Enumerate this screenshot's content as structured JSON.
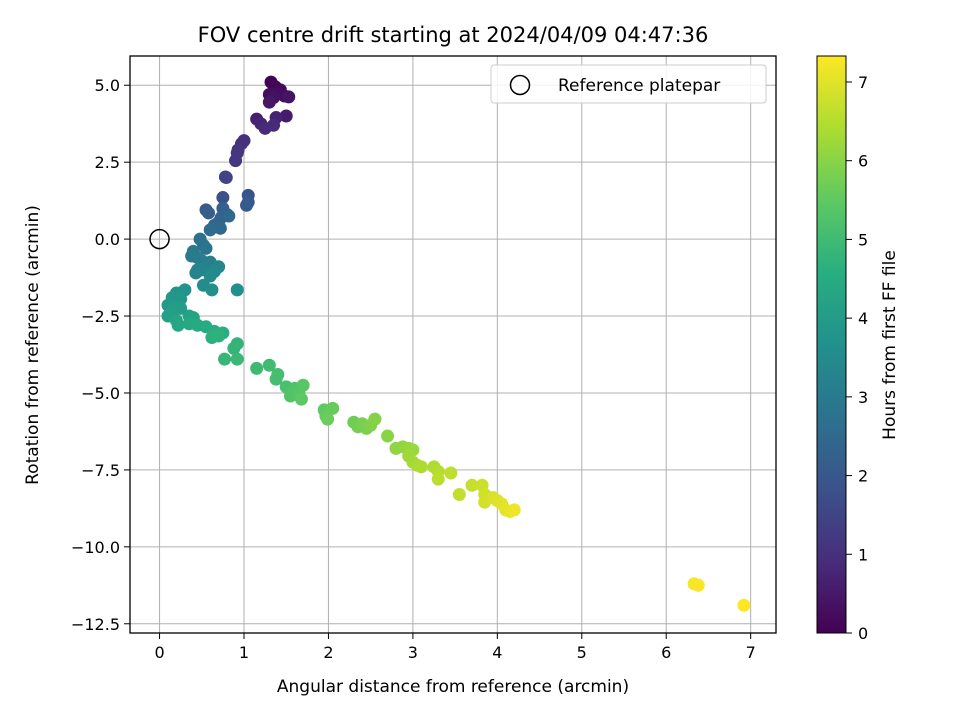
{
  "chart_data": {
    "type": "scatter",
    "title": "FOV centre drift starting at 2024/04/09 04:47:36",
    "xlabel": "Angular distance from reference (arcmin)",
    "ylabel": "Rotation from reference (arcmin)",
    "xlim": [
      -0.35,
      7.3
    ],
    "ylim": [
      -12.8,
      5.95
    ],
    "xticks": [
      0,
      1,
      2,
      3,
      4,
      5,
      6,
      7
    ],
    "xtick_labels": [
      "0",
      "1",
      "2",
      "3",
      "4",
      "5",
      "6",
      "7"
    ],
    "yticks": [
      5.0,
      2.5,
      0.0,
      -2.5,
      -5.0,
      -7.5,
      -10.0,
      -12.5
    ],
    "ytick_labels": [
      "5.0",
      "2.5",
      "0.0",
      "−2.5",
      "−5.0",
      "−7.5",
      "−10.0",
      "−12.5"
    ],
    "grid": true,
    "legend": {
      "placement": "top-right",
      "entries": [
        {
          "label": "Reference platepar",
          "marker": "open-circle"
        }
      ]
    },
    "reference_point": {
      "x": 0.0,
      "y": 0.0
    },
    "colorbar": {
      "label": "Hours from first FF file",
      "range": [
        0,
        7.33
      ],
      "ticks": [
        0,
        1,
        2,
        3,
        4,
        5,
        6,
        7
      ],
      "tick_labels": [
        "0",
        "1",
        "2",
        "3",
        "4",
        "5",
        "6",
        "7"
      ],
      "colormap": "viridis"
    },
    "points": [
      [
        1.32,
        5.1,
        0.05
      ],
      [
        1.37,
        4.95,
        0.1
      ],
      [
        1.43,
        4.85,
        0.15
      ],
      [
        1.4,
        4.75,
        0.2
      ],
      [
        1.3,
        4.7,
        0.25
      ],
      [
        1.48,
        4.65,
        0.3
      ],
      [
        1.35,
        4.6,
        0.35
      ],
      [
        1.53,
        4.62,
        0.4
      ],
      [
        1.3,
        4.45,
        0.45
      ],
      [
        1.5,
        4.0,
        0.55
      ],
      [
        1.15,
        3.9,
        0.65
      ],
      [
        1.38,
        3.95,
        0.7
      ],
      [
        1.2,
        3.75,
        0.75
      ],
      [
        1.25,
        3.6,
        0.85
      ],
      [
        1.35,
        3.7,
        0.9
      ],
      [
        1.0,
        3.2,
        1.0
      ],
      [
        0.97,
        3.1,
        1.05
      ],
      [
        0.93,
        2.9,
        1.1
      ],
      [
        0.92,
        2.8,
        1.15
      ],
      [
        0.9,
        2.55,
        1.2
      ],
      [
        0.78,
        2.02,
        1.4
      ],
      [
        0.79,
        2.0,
        1.45
      ],
      [
        0.75,
        1.35,
        1.8
      ],
      [
        1.05,
        1.42,
        1.9
      ],
      [
        1.05,
        1.2,
        2.0
      ],
      [
        1.03,
        1.1,
        2.05
      ],
      [
        0.55,
        0.95,
        2.1
      ],
      [
        0.58,
        0.85,
        2.15
      ],
      [
        0.75,
        1.0,
        2.2
      ],
      [
        0.8,
        0.8,
        2.25
      ],
      [
        0.73,
        0.7,
        2.3
      ],
      [
        0.7,
        0.55,
        2.35
      ],
      [
        0.65,
        0.45,
        2.4
      ],
      [
        0.72,
        0.35,
        2.45
      ],
      [
        0.82,
        0.75,
        2.5
      ],
      [
        0.6,
        0.3,
        2.55
      ],
      [
        0.48,
        0.0,
        2.7
      ],
      [
        0.52,
        -0.2,
        2.75
      ],
      [
        0.55,
        -0.3,
        2.8
      ],
      [
        0.4,
        -0.4,
        2.9
      ],
      [
        0.38,
        -0.55,
        2.95
      ],
      [
        0.45,
        -0.6,
        3.0
      ],
      [
        0.5,
        -0.7,
        3.05
      ],
      [
        0.6,
        -0.75,
        3.1
      ],
      [
        0.55,
        -0.9,
        3.15
      ],
      [
        0.45,
        -1.0,
        3.2
      ],
      [
        0.43,
        -1.1,
        3.25
      ],
      [
        0.5,
        -1.0,
        3.3
      ],
      [
        0.7,
        -0.9,
        3.35
      ],
      [
        0.65,
        -1.05,
        3.4
      ],
      [
        0.6,
        -1.2,
        3.45
      ],
      [
        0.52,
        -1.5,
        3.55
      ],
      [
        0.62,
        -1.65,
        3.6
      ],
      [
        0.92,
        -1.65,
        3.65
      ],
      [
        0.3,
        -1.65,
        3.75
      ],
      [
        0.2,
        -1.75,
        3.8
      ],
      [
        0.15,
        -1.9,
        3.85
      ],
      [
        0.25,
        -1.95,
        3.9
      ],
      [
        0.1,
        -2.15,
        3.95
      ],
      [
        0.18,
        -2.2,
        4.0
      ],
      [
        0.25,
        -2.25,
        4.05
      ],
      [
        0.15,
        -2.4,
        4.1
      ],
      [
        0.1,
        -2.5,
        4.15
      ],
      [
        0.35,
        -2.5,
        4.2
      ],
      [
        0.4,
        -2.55,
        4.25
      ],
      [
        0.2,
        -2.65,
        4.3
      ],
      [
        0.22,
        -2.8,
        4.35
      ],
      [
        0.35,
        -2.75,
        4.4
      ],
      [
        0.45,
        -2.8,
        4.45
      ],
      [
        0.55,
        -2.85,
        4.5
      ],
      [
        0.65,
        -3.0,
        4.55
      ],
      [
        0.75,
        -3.05,
        4.6
      ],
      [
        0.62,
        -3.2,
        4.65
      ],
      [
        0.7,
        -3.15,
        4.7
      ],
      [
        0.92,
        -3.4,
        4.75
      ],
      [
        0.88,
        -3.55,
        4.8
      ],
      [
        0.77,
        -3.9,
        4.85
      ],
      [
        0.92,
        -3.9,
        4.9
      ],
      [
        1.15,
        -4.2,
        4.95
      ],
      [
        1.3,
        -4.1,
        5.0
      ],
      [
        1.4,
        -4.4,
        5.05
      ],
      [
        1.38,
        -4.55,
        5.1
      ],
      [
        1.5,
        -4.8,
        5.15
      ],
      [
        1.55,
        -4.95,
        5.2
      ],
      [
        1.6,
        -4.85,
        5.25
      ],
      [
        1.55,
        -5.1,
        5.3
      ],
      [
        1.65,
        -5.0,
        5.35
      ],
      [
        1.7,
        -4.75,
        5.4
      ],
      [
        1.68,
        -5.2,
        5.45
      ],
      [
        1.95,
        -5.55,
        5.5
      ],
      [
        1.97,
        -5.75,
        5.55
      ],
      [
        2.05,
        -5.5,
        5.6
      ],
      [
        1.99,
        -5.85,
        5.65
      ],
      [
        2.3,
        -5.95,
        5.7
      ],
      [
        2.35,
        -6.1,
        5.75
      ],
      [
        2.4,
        -6.0,
        5.8
      ],
      [
        2.45,
        -6.15,
        5.85
      ],
      [
        2.5,
        -6.05,
        5.9
      ],
      [
        2.55,
        -5.85,
        5.95
      ],
      [
        2.7,
        -6.4,
        6.0
      ],
      [
        2.8,
        -6.8,
        6.05
      ],
      [
        2.88,
        -6.75,
        6.1
      ],
      [
        2.95,
        -6.8,
        6.15
      ],
      [
        3.0,
        -6.85,
        6.2
      ],
      [
        2.95,
        -7.05,
        6.25
      ],
      [
        3.0,
        -7.25,
        6.3
      ],
      [
        3.05,
        -7.35,
        6.35
      ],
      [
        3.1,
        -7.4,
        6.4
      ],
      [
        3.25,
        -7.4,
        6.45
      ],
      [
        3.3,
        -7.55,
        6.5
      ],
      [
        3.3,
        -7.8,
        6.55
      ],
      [
        3.45,
        -7.6,
        6.6
      ],
      [
        3.55,
        -8.3,
        6.65
      ],
      [
        3.7,
        -8.0,
        6.7
      ],
      [
        3.82,
        -8.0,
        6.75
      ],
      [
        3.85,
        -8.3,
        6.8
      ],
      [
        3.85,
        -8.55,
        6.85
      ],
      [
        3.95,
        -8.4,
        6.9
      ],
      [
        4.0,
        -8.5,
        6.95
      ],
      [
        4.05,
        -8.6,
        7.0
      ],
      [
        4.1,
        -8.8,
        7.05
      ],
      [
        4.15,
        -8.85,
        7.1
      ],
      [
        4.2,
        -8.8,
        7.15
      ],
      [
        6.33,
        -11.2,
        7.25
      ],
      [
        6.38,
        -11.25,
        7.28
      ],
      [
        6.92,
        -11.9,
        7.33
      ]
    ]
  }
}
